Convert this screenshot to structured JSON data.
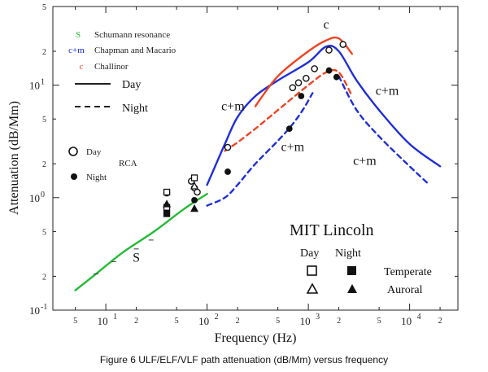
{
  "caption": "Figure 6 ULF/ELF/VLF path attenuation (dB/Mm) versus frequency",
  "chart_data": {
    "type": "line",
    "xscale": "log",
    "yscale": "log",
    "xlim": [
      3,
      30000
    ],
    "ylim": [
      0.1,
      50
    ],
    "xlabel": "Frequency (Hz)",
    "ylabel": "Attenuation (dB/Mm)",
    "x_major_ticks": [
      {
        "value": 10,
        "base": "10",
        "exp": "1"
      },
      {
        "value": 100,
        "base": "10",
        "exp": "2"
      },
      {
        "value": 1000,
        "base": "10",
        "exp": "3"
      },
      {
        "value": 10000,
        "base": "10",
        "exp": "4"
      }
    ],
    "x_minor_ticks": [
      {
        "value": 5,
        "label": "5"
      },
      {
        "value": 20,
        "label": "2"
      },
      {
        "value": 50,
        "label": "5"
      },
      {
        "value": 200,
        "label": "2"
      },
      {
        "value": 500,
        "label": "5"
      },
      {
        "value": 2000,
        "label": "2"
      },
      {
        "value": 5000,
        "label": "5"
      },
      {
        "value": 20000,
        "label": "2"
      }
    ],
    "y_major_ticks": [
      {
        "value": 0.1,
        "base": "10",
        "exp": "-1"
      },
      {
        "value": 1,
        "base": "10",
        "exp": "0"
      },
      {
        "value": 10,
        "base": "10",
        "exp": "1"
      }
    ],
    "y_minor_ticks": [
      {
        "value": 0.2,
        "label": "2"
      },
      {
        "value": 0.5,
        "label": "5"
      },
      {
        "value": 2,
        "label": "2"
      },
      {
        "value": 5,
        "label": "5"
      },
      {
        "value": 20,
        "label": "2"
      },
      {
        "value": 50,
        "label": "5"
      }
    ],
    "series": [
      {
        "name": "Schumann resonance",
        "key": "S",
        "color": "#22bb33",
        "dash": "solid",
        "x": [
          5,
          8,
          15,
          30,
          60,
          100
        ],
        "y": [
          0.15,
          0.21,
          0.33,
          0.5,
          0.8,
          1.08
        ]
      },
      {
        "name": "Chapman and Macario Day",
        "key": "cm-day",
        "color": "#1f2fd6",
        "dash": "solid",
        "x": [
          100,
          150,
          200,
          300,
          500,
          1000,
          1500,
          2000,
          3000,
          5000,
          10000,
          20000
        ],
        "y": [
          1.3,
          3.0,
          5.2,
          8.0,
          11.0,
          16.0,
          22.0,
          20.0,
          11.0,
          6.0,
          3.0,
          1.9
        ]
      },
      {
        "name": "Chapman and Macario Night",
        "key": "cm-night",
        "color": "#1f2fd6",
        "dash": "dashed",
        "x": [
          100,
          150,
          200,
          300,
          500,
          700,
          900,
          1100
        ],
        "y": [
          0.85,
          1.0,
          1.3,
          2.0,
          3.2,
          4.5,
          6.2,
          8.5
        ]
      },
      {
        "name": "Chapman and Macario Night",
        "key": "cm-night-hf",
        "color": "#1f2fd6",
        "dash": "dashed",
        "x": [
          2000,
          3000,
          5000,
          10000,
          15000
        ],
        "y": [
          12.0,
          6.0,
          3.5,
          1.9,
          1.35
        ]
      },
      {
        "name": "Challinor Day",
        "key": "c-day",
        "color": "#ee4422",
        "dash": "solid",
        "x": [
          300,
          500,
          1000,
          1500,
          2000,
          2700
        ],
        "y": [
          6.5,
          12.0,
          20.0,
          25.0,
          26.0,
          19.0
        ]
      },
      {
        "name": "Challinor Night",
        "key": "c-night",
        "color": "#ee4422",
        "dash": "dashed",
        "x": [
          150,
          200,
          300,
          500,
          1000,
          1500,
          2000,
          2700
        ],
        "y": [
          2.6,
          3.1,
          4.1,
          6.0,
          10.0,
          13.0,
          13.0,
          8.0
        ]
      }
    ],
    "rca_day": {
      "x": [
        40,
        70,
        75,
        80,
        160,
        700,
        800,
        950,
        1150,
        1600,
        2200
      ],
      "y": [
        1.1,
        1.4,
        1.22,
        1.12,
        2.8,
        9.5,
        10.5,
        11.5,
        14.0,
        20.5,
        23.0
      ]
    },
    "rca_night": {
      "x": [
        40,
        75,
        160,
        650,
        850,
        1600,
        1900
      ],
      "y": [
        0.72,
        0.95,
        1.7,
        4.1,
        8.0,
        13.5,
        11.8
      ]
    },
    "mit_day_temperate": {
      "x": [
        40,
        40,
        75
      ],
      "y": [
        1.12,
        0.82,
        1.5
      ]
    },
    "mit_day_auroral": {
      "x": [
        75
      ],
      "y": [
        1.27
      ]
    },
    "mit_night_temperate": {
      "x": [
        40
      ],
      "y": [
        0.72
      ]
    },
    "mit_night_auroral": {
      "x": [
        40,
        75
      ],
      "y": [
        0.88,
        0.8
      ]
    },
    "s_points": {
      "x": [
        8,
        12,
        20,
        28
      ],
      "y": [
        0.21,
        0.27,
        0.35,
        0.42
      ]
    },
    "annotations": [
      {
        "text": "S",
        "x": 20,
        "y": 0.27
      },
      {
        "text": "c+m",
        "x": 180,
        "y": 6.0
      },
      {
        "text": "c",
        "x": 1500,
        "y": 32.0
      },
      {
        "text": "c+m",
        "x": 700,
        "y": 2.6
      },
      {
        "text": "c+m",
        "x": 6000,
        "y": 8.2
      },
      {
        "text": "c+m",
        "x": 3600,
        "y": 1.95
      }
    ],
    "legend": [
      {
        "symbol": "S",
        "text": "Schumann resonance",
        "color": "#22bb33"
      },
      {
        "symbol": "c+m",
        "text": "Chapman and Macario",
        "color": "#1f2fd6"
      },
      {
        "symbol": "c",
        "text": "Challinor",
        "color": "#ee4422"
      },
      {
        "text": "Day",
        "line": "solid"
      },
      {
        "text": "Night",
        "line": "dashed"
      }
    ],
    "rca_legend": {
      "title": "RCA",
      "day": "Day",
      "night": "Night"
    },
    "mit_legend": {
      "title": "MIT Lincoln",
      "day": "Day",
      "night": "Night",
      "temperate": "Temperate",
      "auroral": "Auroral"
    }
  }
}
